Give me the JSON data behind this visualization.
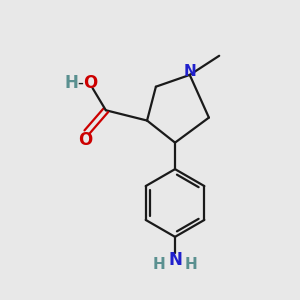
{
  "bg_color": "#e8e8e8",
  "bond_color": "#1a1a1a",
  "N_color": "#2020cc",
  "O_color": "#cc0000",
  "H_color": "#5a9090",
  "line_width": 1.6,
  "figsize": [
    3.0,
    3.0
  ],
  "dpi": 100,
  "N_label": "N",
  "O_label": "O",
  "H_label": "H",
  "NH2_N": "N",
  "NH2_H": "H"
}
